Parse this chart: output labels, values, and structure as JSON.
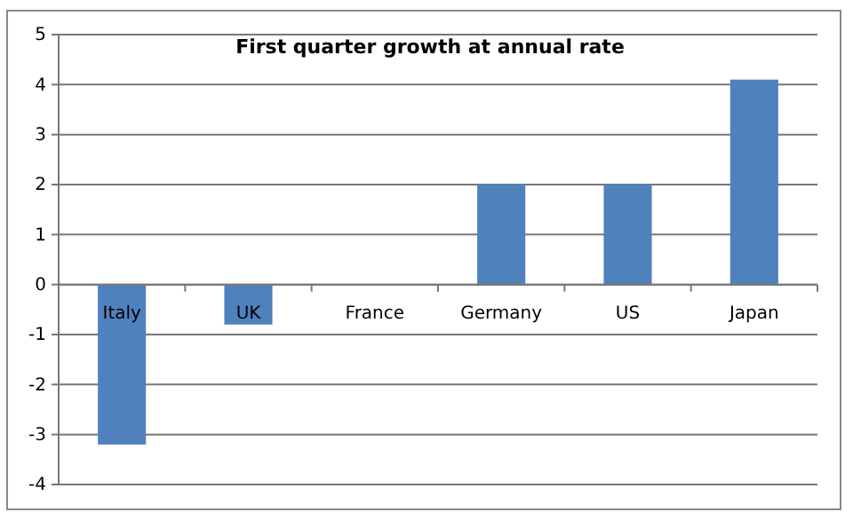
{
  "chart_data": {
    "type": "bar",
    "title": "First quarter growth at annual rate",
    "categories": [
      "Italy",
      "UK",
      "France",
      "Germany",
      "US",
      "Japan"
    ],
    "values": [
      -3.2,
      -0.8,
      0,
      2,
      2,
      4.1
    ],
    "color": "#4f81bd",
    "ylim": [
      -4,
      5
    ],
    "yticks": [
      -4,
      -3,
      -2,
      -1,
      0,
      1,
      2,
      3,
      4,
      5
    ],
    "grid": "y"
  }
}
